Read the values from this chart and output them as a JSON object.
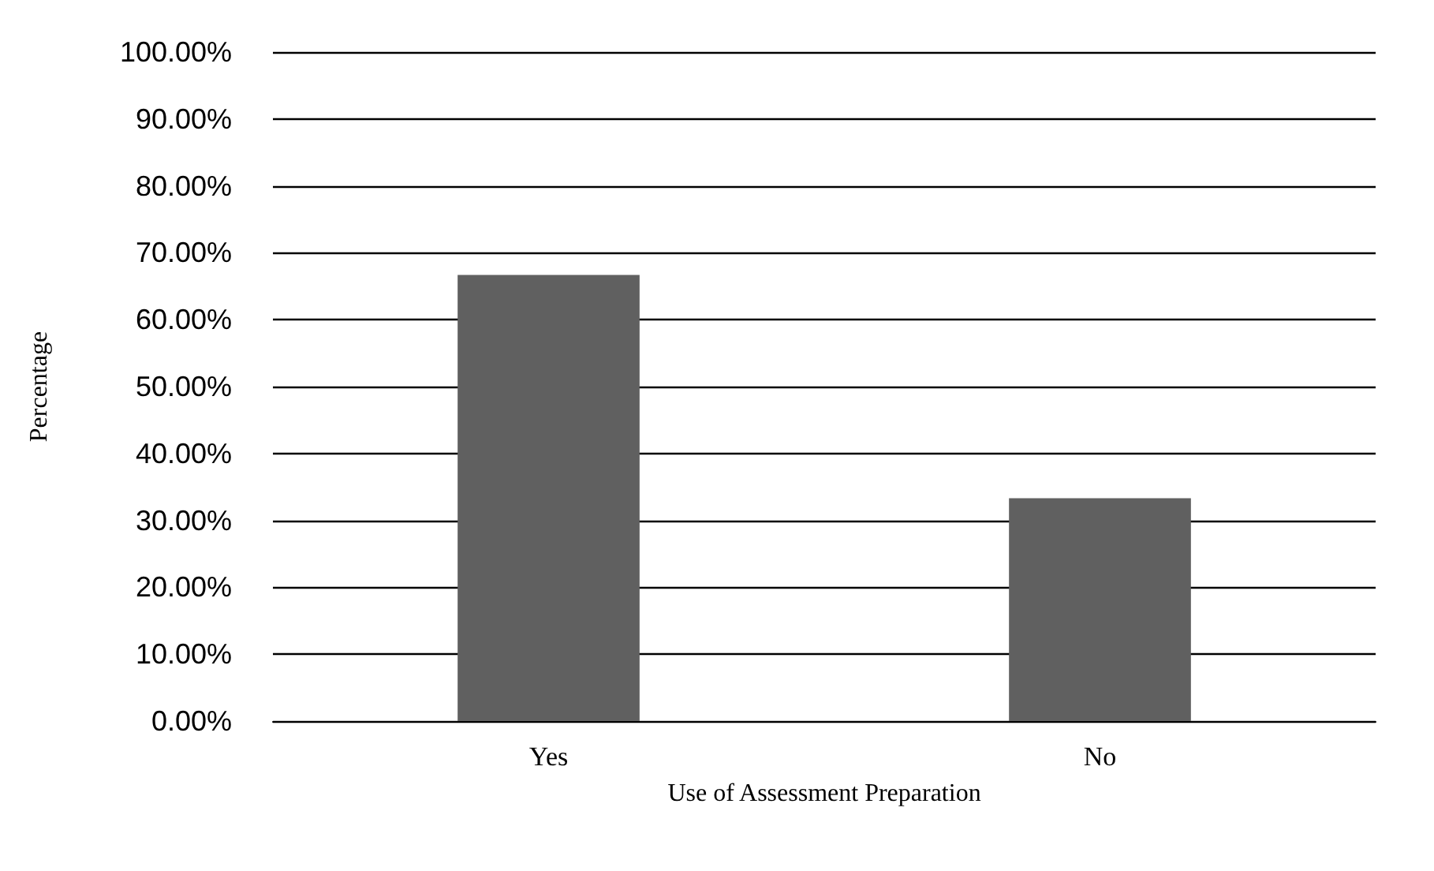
{
  "chart_data": {
    "type": "bar",
    "xlabel": "Use of Assessment Preparation",
    "ylabel": "Percentage",
    "categories": [
      "Yes",
      "No"
    ],
    "values": [
      66.7,
      33.3
    ],
    "color": "#606060",
    "ylim": [
      0,
      100
    ],
    "yticks": [
      {
        "value": 0,
        "label": "0.00%"
      },
      {
        "value": 10,
        "label": "10.00%"
      },
      {
        "value": 20,
        "label": "20.00%"
      },
      {
        "value": 30,
        "label": "30.00%"
      },
      {
        "value": 40,
        "label": "40.00%"
      },
      {
        "value": 50,
        "label": "50.00%"
      },
      {
        "value": 60,
        "label": "60.00%"
      },
      {
        "value": 70,
        "label": "70.00%"
      },
      {
        "value": 80,
        "label": "80.00%"
      },
      {
        "value": 90,
        "label": "90.00%"
      },
      {
        "value": 100,
        "label": "100.00%"
      }
    ],
    "grid": "y"
  }
}
